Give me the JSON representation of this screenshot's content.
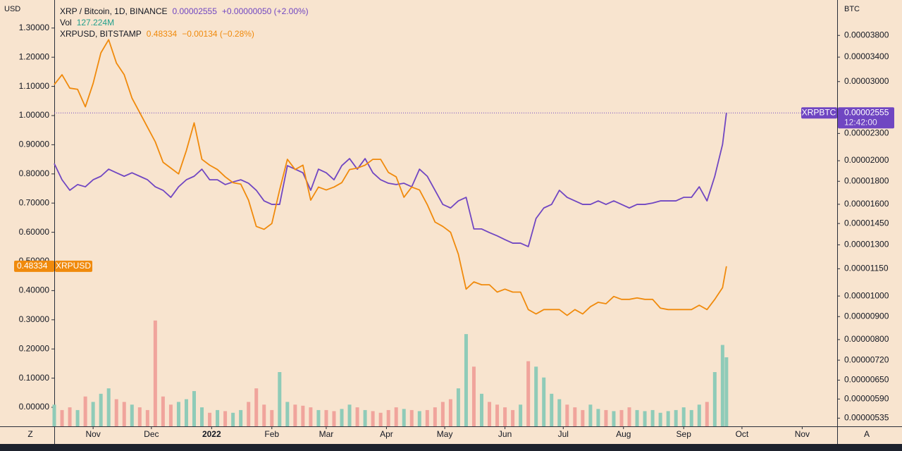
{
  "chart_data": {
    "type": "line",
    "x": [
      0,
      4,
      8,
      12,
      16,
      20,
      24,
      28,
      32,
      36,
      40,
      44,
      48,
      52,
      56,
      60,
      64,
      68,
      72,
      76,
      80,
      84,
      88,
      92,
      96,
      100,
      104,
      108,
      112,
      116,
      120,
      124,
      128,
      132,
      136,
      140,
      144,
      148,
      152,
      156,
      160,
      164,
      168,
      172,
      176,
      180,
      184,
      188,
      192,
      196,
      200,
      204,
      208,
      212,
      216,
      220,
      224,
      228,
      232,
      236,
      240,
      244,
      248,
      252,
      256,
      260,
      264,
      268,
      272,
      276,
      280,
      284,
      288,
      292,
      296,
      300,
      304,
      308,
      312,
      316,
      320,
      324,
      328,
      332,
      336,
      340,
      344,
      346
    ],
    "xlim": [
      0,
      403
    ],
    "xticks": [
      {
        "value": 20,
        "label": "Nov"
      },
      {
        "value": 50,
        "label": "Dec"
      },
      {
        "value": 81,
        "label": "2022"
      },
      {
        "value": 112,
        "label": "Feb"
      },
      {
        "value": 140,
        "label": "Mar"
      },
      {
        "value": 171,
        "label": "Apr"
      },
      {
        "value": 201,
        "label": "May"
      },
      {
        "value": 232,
        "label": "Jun"
      },
      {
        "value": 262,
        "label": "Jul"
      },
      {
        "value": 293,
        "label": "Aug"
      },
      {
        "value": 324,
        "label": "Sep"
      },
      {
        "value": 354,
        "label": "Oct"
      },
      {
        "value": 385,
        "label": "Nov"
      }
    ],
    "ylabel": "USD",
    "y2label": "BTC",
    "ylim": [
      -0.0652,
      1.3961
    ],
    "yticks": [
      {
        "value": 0,
        "label": "0.00000"
      },
      {
        "value": 0.1,
        "label": "0.10000"
      },
      {
        "value": 0.2,
        "label": "0.20000"
      },
      {
        "value": 0.3,
        "label": "0.30000"
      },
      {
        "value": 0.4,
        "label": "0.40000"
      },
      {
        "value": 0.5,
        "label": "0.50000"
      },
      {
        "value": 0.6,
        "label": "0.60000"
      },
      {
        "value": 0.7,
        "label": "0.70000"
      },
      {
        "value": 0.8,
        "label": "0.80000"
      },
      {
        "value": 0.9,
        "label": "0.90000"
      },
      {
        "value": 1,
        "label": "1.00000"
      },
      {
        "value": 1.1,
        "label": "1.10000"
      },
      {
        "value": 1.2,
        "label": "1.20000"
      },
      {
        "value": 1.3,
        "label": "1.30000"
      }
    ],
    "y2lim": [
      5.13e-06,
      4.556e-05
    ],
    "y2log": true,
    "y2ticks": [
      {
        "value": 5.35e-06,
        "label": "0.00000535"
      },
      {
        "value": 5.9e-06,
        "label": "0.00000590"
      },
      {
        "value": 6.5e-06,
        "label": "0.00000650"
      },
      {
        "value": 7.2e-06,
        "label": "0.00000720"
      },
      {
        "value": 8e-06,
        "label": "0.00000800"
      },
      {
        "value": 9e-06,
        "label": "0.00000900"
      },
      {
        "value": 1e-05,
        "label": "0.00001000"
      },
      {
        "value": 1.15e-05,
        "label": "0.00001150"
      },
      {
        "value": 1.3e-05,
        "label": "0.00001300"
      },
      {
        "value": 1.45e-05,
        "label": "0.00001450"
      },
      {
        "value": 1.6e-05,
        "label": "0.00001600"
      },
      {
        "value": 1.8e-05,
        "label": "0.00001800"
      },
      {
        "value": 2e-05,
        "label": "0.00002000"
      },
      {
        "value": 2.3e-05,
        "label": "0.00002300"
      },
      {
        "value": 3e-05,
        "label": "0.00003000"
      },
      {
        "value": 3.4e-05,
        "label": "0.00003400"
      },
      {
        "value": 3.8e-05,
        "label": "0.00003800"
      }
    ],
    "grid": false,
    "series": [
      {
        "name": "XRP / Bitcoin, 1D, BINANCE",
        "tag": "XRPBTC",
        "change": "+0.00000050 (+2.00%)",
        "time_left": "12:42:00",
        "color": "#7046c2",
        "axis": "y2",
        "values": [
          1.971e-05,
          1.814e-05,
          1.719e-05,
          1.77e-05,
          1.75e-05,
          1.814e-05,
          1.847e-05,
          1.915e-05,
          1.88e-05,
          1.847e-05,
          1.88e-05,
          1.847e-05,
          1.814e-05,
          1.75e-05,
          1.719e-05,
          1.658e-05,
          1.75e-05,
          1.814e-05,
          1.847e-05,
          1.915e-05,
          1.814e-05,
          1.814e-05,
          1.77e-05,
          1.794e-05,
          1.814e-05,
          1.782e-05,
          1.719e-05,
          1.628e-05,
          1.599e-05,
          1.599e-05,
          1.95e-05,
          1.915e-05,
          1.88e-05,
          1.719e-05,
          1.915e-05,
          1.88e-05,
          1.814e-05,
          1.95e-05,
          2.022e-05,
          1.915e-05,
          2.022e-05,
          1.88e-05,
          1.814e-05,
          1.782e-05,
          1.77e-05,
          1.782e-05,
          1.75e-05,
          1.915e-05,
          1.847e-05,
          1.719e-05,
          1.599e-05,
          1.57e-05,
          1.628e-05,
          1.658e-05,
          1.41e-05,
          1.41e-05,
          1.384e-05,
          1.361e-05,
          1.335e-05,
          1.311e-05,
          1.311e-05,
          1.288e-05,
          1.488e-05,
          1.57e-05,
          1.599e-05,
          1.719e-05,
          1.658e-05,
          1.628e-05,
          1.599e-05,
          1.599e-05,
          1.628e-05,
          1.599e-05,
          1.628e-05,
          1.599e-05,
          1.57e-05,
          1.599e-05,
          1.599e-05,
          1.61e-05,
          1.628e-05,
          1.628e-05,
          1.628e-05,
          1.658e-05,
          1.658e-05,
          1.75e-05,
          1.628e-05,
          1.847e-05,
          2.174e-05,
          2.555e-05
        ]
      },
      {
        "name": "XRPUSD, BITSTAMP",
        "tag": "XRPUSD",
        "change": "−0.00134 (−0.28%)",
        "color": "#f08a0c",
        "axis": "y",
        "values": [
          1.106,
          1.14,
          1.094,
          1.09,
          1.03,
          1.11,
          1.215,
          1.26,
          1.18,
          1.14,
          1.06,
          1.01,
          0.96,
          0.91,
          0.84,
          0.82,
          0.8,
          0.88,
          0.975,
          0.85,
          0.83,
          0.815,
          0.79,
          0.77,
          0.765,
          0.71,
          0.62,
          0.61,
          0.63,
          0.745,
          0.85,
          0.815,
          0.83,
          0.71,
          0.755,
          0.745,
          0.755,
          0.77,
          0.815,
          0.82,
          0.83,
          0.85,
          0.85,
          0.805,
          0.79,
          0.72,
          0.755,
          0.745,
          0.695,
          0.635,
          0.62,
          0.6,
          0.525,
          0.405,
          0.43,
          0.42,
          0.42,
          0.395,
          0.405,
          0.395,
          0.395,
          0.335,
          0.32,
          0.335,
          0.335,
          0.335,
          0.315,
          0.335,
          0.32,
          0.345,
          0.36,
          0.355,
          0.38,
          0.37,
          0.37,
          0.375,
          0.37,
          0.37,
          0.34,
          0.335,
          0.335,
          0.335,
          0.335,
          0.35,
          0.335,
          0.37,
          0.41,
          0.48334
        ]
      }
    ],
    "volume": {
      "name": "Vol",
      "latest_label": "127.224M",
      "up_color": "#8fcbb8",
      "down_color": "#f0a49c",
      "label_color": "#22a08c",
      "values": [
        40,
        30,
        35,
        30,
        55,
        45,
        60,
        70,
        50,
        45,
        40,
        35,
        30,
        195,
        55,
        40,
        45,
        50,
        65,
        35,
        25,
        30,
        28,
        25,
        30,
        45,
        70,
        40,
        30,
        100,
        45,
        40,
        38,
        35,
        30,
        30,
        28,
        32,
        40,
        35,
        30,
        28,
        25,
        30,
        35,
        32,
        30,
        28,
        30,
        35,
        45,
        50,
        70,
        170,
        110,
        60,
        45,
        40,
        35,
        30,
        40,
        120,
        110,
        90,
        60,
        50,
        40,
        35,
        30,
        40,
        32,
        30,
        28,
        30,
        35,
        30,
        28,
        30,
        25,
        28,
        30,
        35,
        30,
        40,
        45,
        100,
        150,
        127.224
      ]
    },
    "corner_left": "Z",
    "corner_right": "A"
  }
}
